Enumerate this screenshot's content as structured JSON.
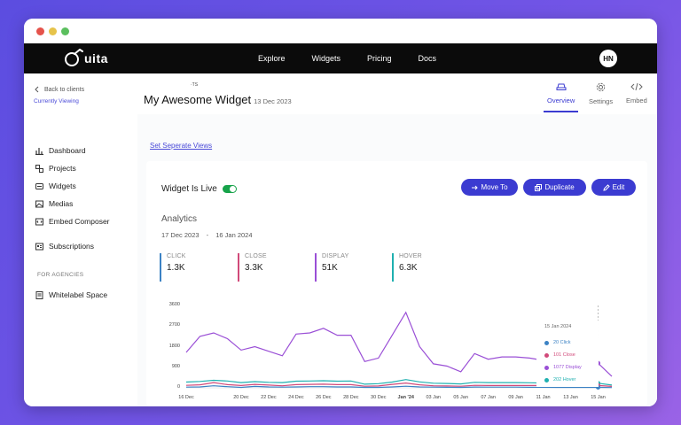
{
  "brand": {
    "logo_text": "uita"
  },
  "nav": {
    "links": [
      "Explore",
      "Widgets",
      "Pricing",
      "Docs"
    ],
    "avatar": "HN"
  },
  "sidebar": {
    "back_label": "Back to clients",
    "currently_viewing": "Currently Viewing",
    "items": [
      "Dashboard",
      "Projects",
      "Widgets",
      "Medias",
      "Embed Composer",
      "Subscriptions"
    ],
    "group_label": "FOR AGENCIES",
    "agency_items": [
      "Whitelabel Space"
    ]
  },
  "header": {
    "tiny_text": "·TS",
    "title": "My Awesome Widget",
    "date": "13 Dec 2023",
    "tabs": [
      {
        "label": "Overview",
        "icon": "car-icon",
        "active": true
      },
      {
        "label": "Settings",
        "icon": "gear-icon",
        "active": false
      },
      {
        "label": "Embed",
        "icon": "code-icon",
        "active": false
      }
    ]
  },
  "set_views_link": "Set Seperate Views",
  "card": {
    "live_label": "Widget Is Live",
    "buttons": {
      "move": "Move To",
      "duplicate": "Duplicate",
      "edit": "Edit"
    },
    "analytics_title": "Analytics",
    "range_start": "17 Dec 2023",
    "range_sep": "-",
    "range_end": "16 Jan 2024",
    "metrics": [
      {
        "label": "CLICK",
        "value": "1.3K",
        "color": "#3b82c4"
      },
      {
        "label": "CLOSE",
        "value": "3.3K",
        "color": "#d14a7a"
      },
      {
        "label": "DISPLAY",
        "value": "51K",
        "color": "#9a4fd6"
      },
      {
        "label": "HOVER",
        "value": "6.3K",
        "color": "#1fb0b0"
      }
    ]
  },
  "tooltip": {
    "date": "15 Jan 2024",
    "rows": [
      {
        "text": "20 Click",
        "color": "#3b82c4"
      },
      {
        "text": "101 Close",
        "color": "#d14a7a"
      },
      {
        "text": "1077 Display",
        "color": "#9a4fd6"
      },
      {
        "text": "202 Hover",
        "color": "#1fb0b0"
      }
    ]
  },
  "chart_data": {
    "type": "line",
    "x": [
      "16 Dec",
      "17 Dec",
      "18 Dec",
      "19 Dec",
      "20 Dec",
      "21 Dec",
      "22 Dec",
      "23 Dec",
      "24 Dec",
      "25 Dec",
      "26 Dec",
      "27 Dec",
      "28 Dec",
      "29 Dec",
      "30 Dec",
      "31 Dec",
      "Jan '24",
      "02 Jan",
      "03 Jan",
      "04 Jan",
      "05 Jan",
      "06 Jan",
      "07 Jan",
      "08 Jan",
      "09 Jan",
      "10 Jan",
      "11 Jan",
      "12 Jan",
      "13 Jan",
      "14 Jan",
      "15 Jan",
      "16 Jan"
    ],
    "xticks": [
      "16 Dec",
      "20 Dec",
      "22 Dec",
      "24 Dec",
      "26 Dec",
      "28 Dec",
      "30 Dec",
      "Jan '24",
      "03 Jan",
      "05 Jan",
      "07 Jan",
      "09 Jan",
      "11 Jan",
      "13 Jan",
      "15 Jan"
    ],
    "yticks": [
      0,
      900,
      1800,
      2700,
      3600
    ],
    "ylim": [
      0,
      3600
    ],
    "series": [
      {
        "name": "Display",
        "color": "#9a4fd6",
        "values": [
          1550,
          2250,
          2400,
          2150,
          1650,
          1800,
          1600,
          1400,
          2350,
          2400,
          2600,
          2300,
          2300,
          1150,
          1300,
          2300,
          3300,
          1800,
          1050,
          950,
          700,
          1500,
          1250,
          1350,
          1350,
          1300,
          1200,
          1150,
          1150,
          1100,
          1077,
          500
        ]
      },
      {
        "name": "Hover",
        "color": "#1fb0b0",
        "values": [
          250,
          280,
          330,
          300,
          230,
          270,
          240,
          230,
          290,
          300,
          310,
          290,
          300,
          160,
          180,
          250,
          360,
          260,
          200,
          190,
          170,
          240,
          230,
          230,
          230,
          220,
          210,
          210,
          210,
          205,
          202,
          120
        ]
      },
      {
        "name": "Close",
        "color": "#d14a7a",
        "values": [
          110,
          130,
          230,
          140,
          100,
          150,
          120,
          90,
          140,
          150,
          160,
          140,
          140,
          70,
          80,
          150,
          210,
          130,
          90,
          80,
          70,
          110,
          100,
          100,
          100,
          100,
          100,
          100,
          100,
          101,
          101,
          60
        ]
      },
      {
        "name": "Click",
        "color": "#3b82c4",
        "values": [
          30,
          40,
          90,
          50,
          20,
          60,
          40,
          30,
          40,
          50,
          50,
          40,
          40,
          20,
          20,
          40,
          70,
          40,
          30,
          25,
          20,
          35,
          30,
          30,
          30,
          25,
          25,
          20,
          20,
          20,
          20,
          10
        ]
      }
    ]
  }
}
